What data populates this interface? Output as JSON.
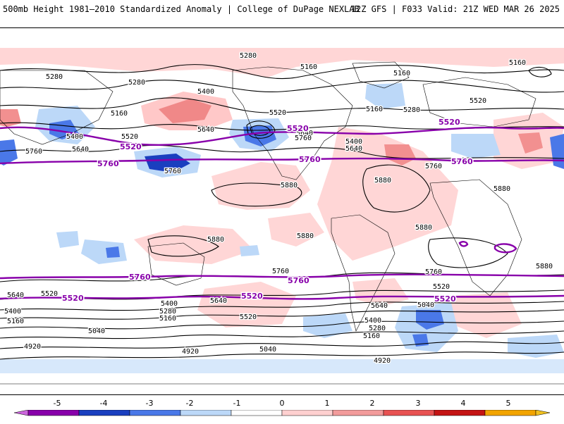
{
  "header": {
    "left_title": "500mb Height 1981–2010 Standardized Anomaly | College of DuPage NEXLAB",
    "right_title": "12Z GFS | F033 Valid: 21Z WED MAR 26 2025"
  },
  "colorbar": {
    "ticks": [
      "-5",
      "-4",
      "-3",
      "-2",
      "-1",
      "0",
      "1",
      "2",
      "3",
      "4",
      "5"
    ],
    "colors": [
      "#cc66dd",
      "#8800aa",
      "#1a3fbf",
      "#4a78e8",
      "#bcd8f8",
      "#ffffff",
      "#ffd0d0",
      "#f29b9b",
      "#e85252",
      "#c41414",
      "#f2a400",
      "#f0c020"
    ]
  },
  "contour_labels": [
    {
      "text": "5280"
    },
    {
      "text": "5280"
    },
    {
      "text": "5280"
    },
    {
      "text": "5160"
    },
    {
      "text": "5160"
    },
    {
      "text": "5400"
    },
    {
      "text": "5160"
    },
    {
      "text": "5400"
    },
    {
      "text": "5520"
    },
    {
      "text": "5640"
    },
    {
      "text": "5640"
    },
    {
      "text": "5760"
    },
    {
      "text": "5760"
    },
    {
      "text": "5520"
    },
    {
      "text": "5160"
    },
    {
      "text": "5280"
    },
    {
      "text": "5520"
    },
    {
      "text": "5640"
    },
    {
      "text": "5400"
    },
    {
      "text": "5640"
    },
    {
      "text": "5760"
    },
    {
      "text": "5760"
    },
    {
      "text": "5880"
    },
    {
      "text": "5880"
    },
    {
      "text": "5880"
    },
    {
      "text": "5880"
    },
    {
      "text": "5880"
    },
    {
      "text": "5880"
    },
    {
      "text": "5880"
    },
    {
      "text": "5760"
    },
    {
      "text": "5760"
    },
    {
      "text": "5640"
    },
    {
      "text": "5520"
    },
    {
      "text": "5520"
    },
    {
      "text": "5640"
    },
    {
      "text": "5640"
    },
    {
      "text": "5400"
    },
    {
      "text": "5280"
    },
    {
      "text": "5160"
    },
    {
      "text": "5400"
    },
    {
      "text": "5160"
    },
    {
      "text": "5040"
    },
    {
      "text": "5520"
    },
    {
      "text": "5400"
    },
    {
      "text": "5280"
    },
    {
      "text": "5160"
    },
    {
      "text": "5040"
    },
    {
      "text": "5040"
    },
    {
      "text": "4920"
    },
    {
      "text": "4920"
    },
    {
      "text": "4920"
    },
    {
      "text": "5040"
    },
    {
      "text": "5520"
    },
    {
      "text": "5280"
    },
    {
      "text": "5160"
    },
    {
      "text": "5280"
    }
  ],
  "highlight_labels": [
    {
      "text": "5520"
    },
    {
      "text": "5760"
    },
    {
      "text": "5520"
    },
    {
      "text": "5760"
    },
    {
      "text": "5520"
    },
    {
      "text": "5760"
    },
    {
      "text": "5760"
    },
    {
      "text": "5760"
    },
    {
      "text": "5520"
    },
    {
      "text": "5520"
    },
    {
      "text": "5520"
    }
  ]
}
